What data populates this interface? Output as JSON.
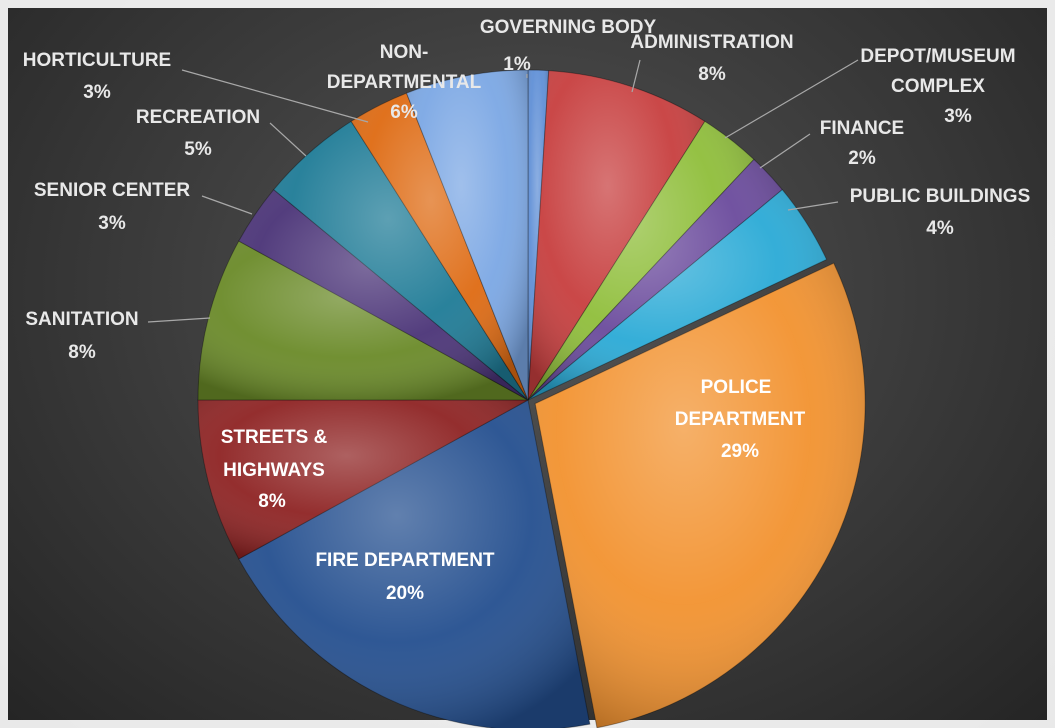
{
  "chart_data": {
    "type": "pie",
    "title": "",
    "slices": [
      {
        "category": "GOVERNING BODY",
        "value": 1,
        "pct_label": "1%",
        "color": "#5f8fd6"
      },
      {
        "category": "ADMINISTRATION",
        "value": 8,
        "pct_label": "8%",
        "color": "#c73e3e"
      },
      {
        "category": "DEPOT/MUSEUM COMPLEX",
        "value": 3,
        "pct_label": "3%",
        "color": "#8fbe3a"
      },
      {
        "category": "FINANCE",
        "value": 2,
        "pct_label": "2%",
        "color": "#6a4a9c"
      },
      {
        "category": "PUBLIC BUILDINGS",
        "value": 4,
        "pct_label": "4%",
        "color": "#2aaad6"
      },
      {
        "category": "POLICE DEPARTMENT",
        "value": 29,
        "pct_label": "29%",
        "color": "#f2922f"
      },
      {
        "category": "FIRE DEPARTMENT",
        "value": 20,
        "pct_label": "20%",
        "color": "#244f8f"
      },
      {
        "category": "STREETS & HIGHWAYS",
        "value": 8,
        "pct_label": "8%",
        "color": "#8e2323"
      },
      {
        "category": "SANITATION",
        "value": 8,
        "pct_label": "8%",
        "color": "#6a8a28"
      },
      {
        "category": "SENIOR CENTER",
        "value": 3,
        "pct_label": "3%",
        "color": "#4a3377"
      },
      {
        "category": "RECREATION",
        "value": 5,
        "pct_label": "5%",
        "color": "#1e7b96"
      },
      {
        "category": "HORTICULTURE",
        "value": 3,
        "pct_label": "3%",
        "color": "#de6a12"
      },
      {
        "category": "NON-DEPARTMENTAL",
        "value": 6,
        "pct_label": "6%",
        "color": "#7ba7e4"
      }
    ],
    "legend": "none",
    "data_labels": "category and percentage"
  }
}
